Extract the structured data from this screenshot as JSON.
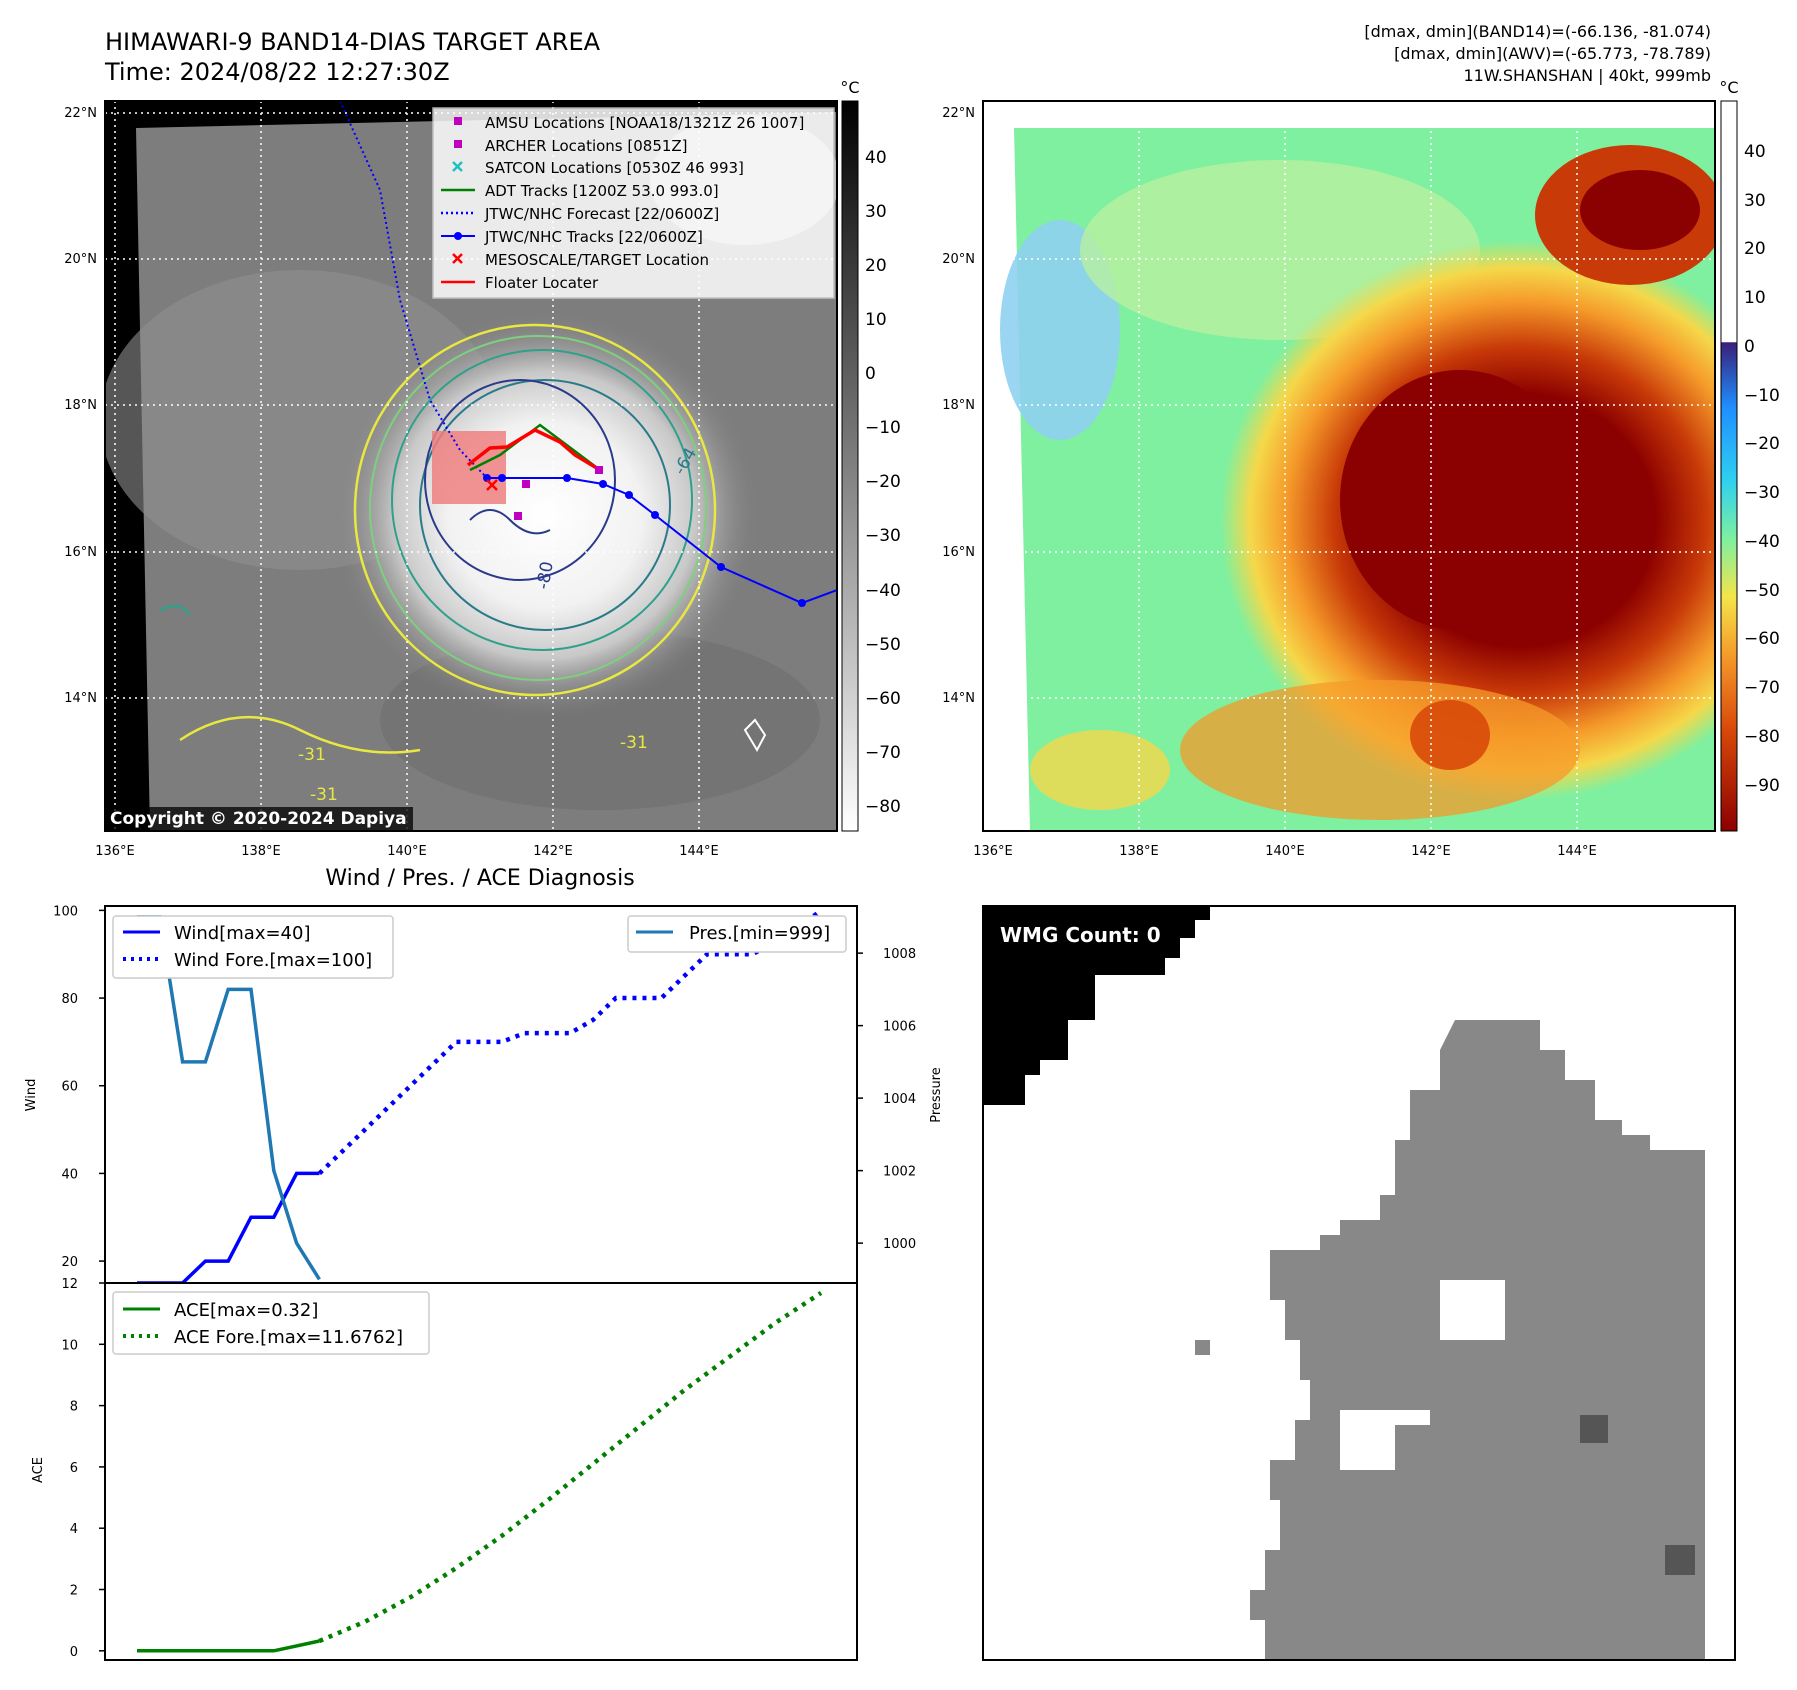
{
  "header": {
    "title_line1": "HIMAWARI-9 BAND14-DIAS TARGET AREA",
    "title_line2": "Time: 2024/08/22 12:27:30Z",
    "right_line1": "[dmax, dmin](BAND14)=(-66.136, -81.074)",
    "right_line2": "[dmax, dmin](AWV)=(-65.773, -78.789)",
    "right_line3": "11W.SHANSHAN | 40kt, 999mb"
  },
  "copyright": "Copyright © 2020-2024 Dapiya",
  "unit_label": "°C",
  "lat_ticks": [
    "22°N",
    "20°N",
    "18°N",
    "16°N",
    "14°N"
  ],
  "lon_ticks": [
    "136°E",
    "138°E",
    "140°E",
    "142°E",
    "144°E"
  ],
  "colorbar_left": {
    "ticks": [
      "40",
      "30",
      "20",
      "10",
      "0",
      "−10",
      "−20",
      "−30",
      "−40",
      "−50",
      "−60",
      "−70",
      "−80"
    ],
    "colors": [
      "#000000",
      "#ffffff"
    ]
  },
  "colorbar_right": {
    "ticks": [
      "40",
      "30",
      "20",
      "10",
      "0",
      "−10",
      "−20",
      "−30",
      "−40",
      "−50",
      "−60",
      "−70",
      "−80",
      "−90"
    ],
    "colors": [
      "#ffffff",
      "#3a1f7a",
      "#1f8fff",
      "#2fd0f0",
      "#7ef0a0",
      "#f5e44a",
      "#f59a2a",
      "#d84a0a",
      "#8b0000"
    ]
  },
  "map_legend": [
    {
      "label": "AMSU Locations [NOAA18/1321Z 26 1007]",
      "marker": "square",
      "color": "#c000c0"
    },
    {
      "label": "ARCHER Locations [0851Z]",
      "marker": "square",
      "color": "#c000c0"
    },
    {
      "label": "SATCON Locations [0530Z 46 993]",
      "marker": "x",
      "color": "#20c0c0"
    },
    {
      "label": "ADT Tracks [1200Z 53.0 993.0]",
      "marker": "line",
      "color": "#008000"
    },
    {
      "label": "JTWC/NHC Forecast [22/0600Z]",
      "marker": "dotted",
      "color": "#0000ff"
    },
    {
      "label": "JTWC/NHC Tracks [22/0600Z]",
      "marker": "line-dot",
      "color": "#0000ff"
    },
    {
      "label": "MESOSCALE/TARGET Location",
      "marker": "x",
      "color": "#ff0000"
    },
    {
      "label": "Floater Locater",
      "marker": "line",
      "color": "#ff0000"
    }
  ],
  "contour_labels": [
    "-64",
    "-31",
    "-31",
    "-31",
    "-80"
  ],
  "diag_title": "Wind / Pres. / ACE Diagnosis",
  "wmg_label": "WMG Count: 0",
  "chart_data": [
    {
      "type": "line",
      "title": "Wind / Pres. / ACE Diagnosis",
      "ylabel": "Wind",
      "ylabel_right": "Pressure",
      "ylim": [
        15,
        101
      ],
      "y_ticks": [
        20,
        40,
        60,
        80,
        100
      ],
      "ylim_right": [
        998.9,
        1009.3
      ],
      "y_ticks_right": [
        1000,
        1002,
        1004,
        1006,
        1008
      ],
      "x": [
        0,
        1,
        2,
        3,
        4,
        5,
        6,
        7,
        8,
        9,
        10,
        11,
        12,
        13,
        14,
        15,
        16,
        17,
        18,
        19,
        20,
        21,
        22,
        23,
        24,
        25,
        26,
        27,
        28,
        29,
        30
      ],
      "series": [
        {
          "name": "Wind[max=40]",
          "axis": "left",
          "style": "solid",
          "color": "#0000ff",
          "x": [
            0,
            1,
            2,
            3,
            4,
            5,
            6,
            7,
            8
          ],
          "values": [
            15,
            15,
            15,
            20,
            20,
            30,
            30,
            40,
            40
          ]
        },
        {
          "name": "Wind Fore.[max=100]",
          "axis": "left",
          "style": "dotted",
          "color": "#0000ff",
          "x": [
            8,
            9,
            10,
            11,
            12,
            13,
            14,
            15,
            16,
            17,
            18,
            19,
            20,
            21,
            22,
            23,
            24,
            25,
            26,
            27,
            28,
            29,
            30
          ],
          "values": [
            40,
            45,
            50,
            55,
            60,
            65,
            70,
            70,
            70,
            72,
            72,
            72,
            75,
            80,
            80,
            80,
            85,
            90,
            90,
            90,
            93,
            96,
            100
          ]
        },
        {
          "name": "Pres.[min=999]",
          "axis": "right",
          "style": "solid",
          "color": "#1f77b4",
          "x": [
            0,
            1,
            2,
            3,
            4,
            5,
            6,
            7,
            8
          ],
          "values": [
            1009,
            1009,
            1005,
            1005,
            1007,
            1007,
            1002,
            1000,
            999
          ]
        }
      ]
    },
    {
      "type": "line",
      "ylabel": "ACE",
      "ylim": [
        -0.3,
        12.0
      ],
      "y_ticks": [
        0,
        2,
        4,
        6,
        8,
        10,
        12
      ],
      "series": [
        {
          "name": "ACE[max=0.32]",
          "style": "solid",
          "color": "#008000",
          "x": [
            0,
            1,
            2,
            3,
            4,
            5,
            6,
            7,
            8
          ],
          "values": [
            0,
            0,
            0,
            0,
            0,
            0,
            0,
            0.16,
            0.32
          ]
        },
        {
          "name": "ACE Fore.[max=11.6762]",
          "style": "dotted",
          "color": "#008000",
          "x": [
            8,
            10,
            12,
            14,
            16,
            18,
            20,
            22,
            24,
            26,
            28,
            30
          ],
          "values": [
            0.32,
            0.95,
            1.75,
            2.7,
            3.75,
            4.9,
            6.1,
            7.3,
            8.5,
            9.6,
            10.7,
            11.6762
          ]
        }
      ]
    }
  ]
}
